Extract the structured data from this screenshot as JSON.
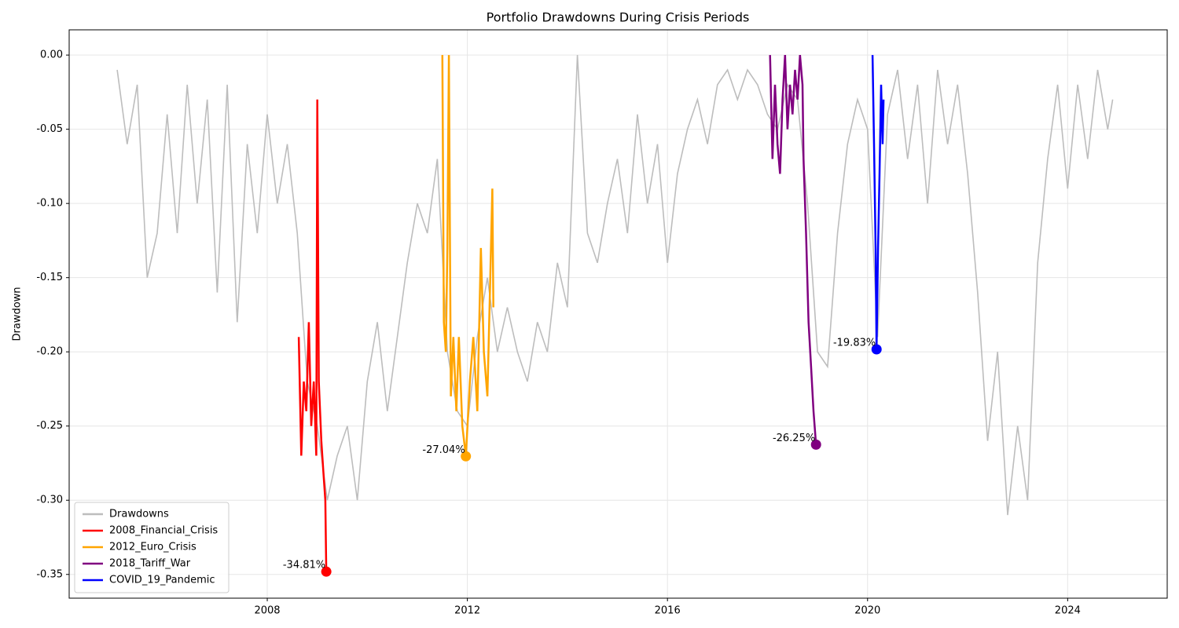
{
  "chart_data": {
    "type": "line",
    "title": "Portfolio Drawdowns During Crisis Periods",
    "ylabel": "Drawdown",
    "xlim": [
      2004.04,
      2025.99
    ],
    "xticks": [
      2008,
      2012,
      2016,
      2020,
      2024
    ],
    "ylim": [
      -0.366,
      0.017
    ],
    "yticks": [
      {
        "value": 0,
        "label": "0.00"
      },
      {
        "value": -0.05,
        "label": "-0.05"
      },
      {
        "value": -0.1,
        "label": "-0.10"
      },
      {
        "value": -0.15,
        "label": "-0.15"
      },
      {
        "value": -0.2,
        "label": "-0.20"
      },
      {
        "value": -0.25,
        "label": "-0.25"
      },
      {
        "value": -0.3,
        "label": "-0.30"
      },
      {
        "value": -0.35,
        "label": "-0.35"
      }
    ],
    "grid": true,
    "legend": "lower left",
    "series": [
      {
        "name": "Drawdowns",
        "color": "#bdbdbd",
        "x": [
          2005.0,
          2005.2,
          2005.4,
          2005.6,
          2005.8,
          2006.0,
          2006.2,
          2006.4,
          2006.6,
          2006.8,
          2007.0,
          2007.2,
          2007.4,
          2007.6,
          2007.8,
          2008.0,
          2008.2,
          2008.4,
          2008.6,
          2008.8,
          2009.0,
          2009.2,
          2009.4,
          2009.6,
          2009.8,
          2010.0,
          2010.2,
          2010.4,
          2010.6,
          2010.8,
          2011.0,
          2011.2,
          2011.4,
          2011.6,
          2011.8,
          2012.0,
          2012.2,
          2012.4,
          2012.6,
          2012.8,
          2013.0,
          2013.2,
          2013.4,
          2013.6,
          2013.8,
          2014.0,
          2014.2,
          2014.4,
          2014.6,
          2014.8,
          2015.0,
          2015.2,
          2015.4,
          2015.6,
          2015.8,
          2016.0,
          2016.2,
          2016.4,
          2016.6,
          2016.8,
          2017.0,
          2017.2,
          2017.4,
          2017.6,
          2017.8,
          2018.0,
          2018.2,
          2018.4,
          2018.6,
          2018.8,
          2019.0,
          2019.2,
          2019.4,
          2019.6,
          2019.8,
          2020.0,
          2020.2,
          2020.4,
          2020.6,
          2020.8,
          2021.0,
          2021.2,
          2021.4,
          2021.6,
          2021.8,
          2022.0,
          2022.2,
          2022.4,
          2022.6,
          2022.8,
          2023.0,
          2023.2,
          2023.4,
          2023.6,
          2023.8,
          2024.0,
          2024.2,
          2024.4,
          2024.6,
          2024.8,
          2024.9
        ],
        "values": [
          -0.01,
          -0.06,
          -0.02,
          -0.15,
          -0.12,
          -0.04,
          -0.12,
          -0.02,
          -0.1,
          -0.03,
          -0.16,
          -0.02,
          -0.18,
          -0.06,
          -0.12,
          -0.04,
          -0.1,
          -0.06,
          -0.12,
          -0.22,
          -0.25,
          -0.3,
          -0.27,
          -0.25,
          -0.3,
          -0.22,
          -0.18,
          -0.24,
          -0.19,
          -0.14,
          -0.1,
          -0.12,
          -0.07,
          -0.2,
          -0.24,
          -0.25,
          -0.19,
          -0.15,
          -0.2,
          -0.17,
          -0.2,
          -0.22,
          -0.18,
          -0.2,
          -0.14,
          -0.17,
          0,
          -0.12,
          -0.14,
          -0.1,
          -0.07,
          -0.12,
          -0.04,
          -0.1,
          -0.06,
          -0.14,
          -0.08,
          -0.05,
          -0.03,
          -0.06,
          -0.02,
          -0.01,
          -0.03,
          -0.01,
          -0.02,
          -0.04,
          -0.05,
          -0.02,
          -0.03,
          -0.1,
          -0.2,
          -0.21,
          -0.12,
          -0.06,
          -0.03,
          -0.05,
          -0.19,
          -0.04,
          -0.01,
          -0.07,
          -0.02,
          -0.1,
          -0.01,
          -0.06,
          -0.02,
          -0.08,
          -0.16,
          -0.26,
          -0.2,
          -0.31,
          -0.25,
          -0.3,
          -0.14,
          -0.07,
          -0.02,
          -0.09,
          -0.02,
          -0.07,
          -0.01,
          -0.05,
          -0.03
        ]
      },
      {
        "name": "2008_Financial_Crisis",
        "color": "#ff0000",
        "x": [
          2008.63,
          2008.68,
          2008.73,
          2008.78,
          2008.83,
          2008.88,
          2008.93,
          2008.98,
          2009.0,
          2009.03,
          2009.08,
          2009.12,
          2009.16,
          2009.18
        ],
        "values": [
          -0.19,
          -0.27,
          -0.22,
          -0.24,
          -0.18,
          -0.25,
          -0.22,
          -0.27,
          -0.03,
          -0.22,
          -0.26,
          -0.28,
          -0.3,
          -0.3481
        ],
        "marker": {
          "x": 2009.18,
          "y": -0.3481,
          "label": "-34.81%"
        }
      },
      {
        "name": "2012_Euro_Crisis",
        "color": "#ffa500",
        "x": [
          2011.5,
          2011.53,
          2011.57,
          2011.6,
          2011.63,
          2011.67,
          2011.72,
          2011.78,
          2011.83,
          2011.9,
          2011.97,
          2012.05,
          2012.12,
          2012.2,
          2012.27,
          2012.33,
          2012.4,
          2012.45,
          2012.5,
          2012.52
        ],
        "values": [
          0,
          -0.18,
          -0.2,
          -0.13,
          0,
          -0.23,
          -0.19,
          -0.24,
          -0.19,
          -0.25,
          -0.2704,
          -0.22,
          -0.19,
          -0.24,
          -0.13,
          -0.2,
          -0.23,
          -0.16,
          -0.09,
          -0.17
        ],
        "marker": {
          "x": 2011.97,
          "y": -0.2704,
          "label": "-27.04%"
        }
      },
      {
        "name": "2018_Tariff_War",
        "color": "#800080",
        "x": [
          2018.05,
          2018.1,
          2018.15,
          2018.2,
          2018.25,
          2018.3,
          2018.35,
          2018.4,
          2018.45,
          2018.5,
          2018.55,
          2018.6,
          2018.65,
          2018.7,
          2018.72,
          2018.77,
          2018.82,
          2018.87,
          2018.92,
          2018.97
        ],
        "values": [
          0,
          -0.07,
          -0.02,
          -0.06,
          -0.08,
          -0.03,
          0,
          -0.05,
          -0.02,
          -0.04,
          -0.01,
          -0.03,
          0,
          -0.02,
          -0.07,
          -0.12,
          -0.18,
          -0.21,
          -0.24,
          -0.2625
        ],
        "marker": {
          "x": 2018.97,
          "y": -0.2625,
          "label": "-26.25%"
        }
      },
      {
        "name": "COVID_19_Pandemic",
        "color": "#0000ff",
        "x": [
          2020.1,
          2020.13,
          2020.16,
          2020.18,
          2020.21,
          2020.24,
          2020.27,
          2020.3,
          2020.32
        ],
        "values": [
          0,
          -0.06,
          -0.13,
          -0.1983,
          -0.13,
          -0.08,
          -0.02,
          -0.06,
          -0.03
        ],
        "marker": {
          "x": 2020.18,
          "y": -0.1983,
          "label": "-19.83%"
        }
      }
    ]
  }
}
